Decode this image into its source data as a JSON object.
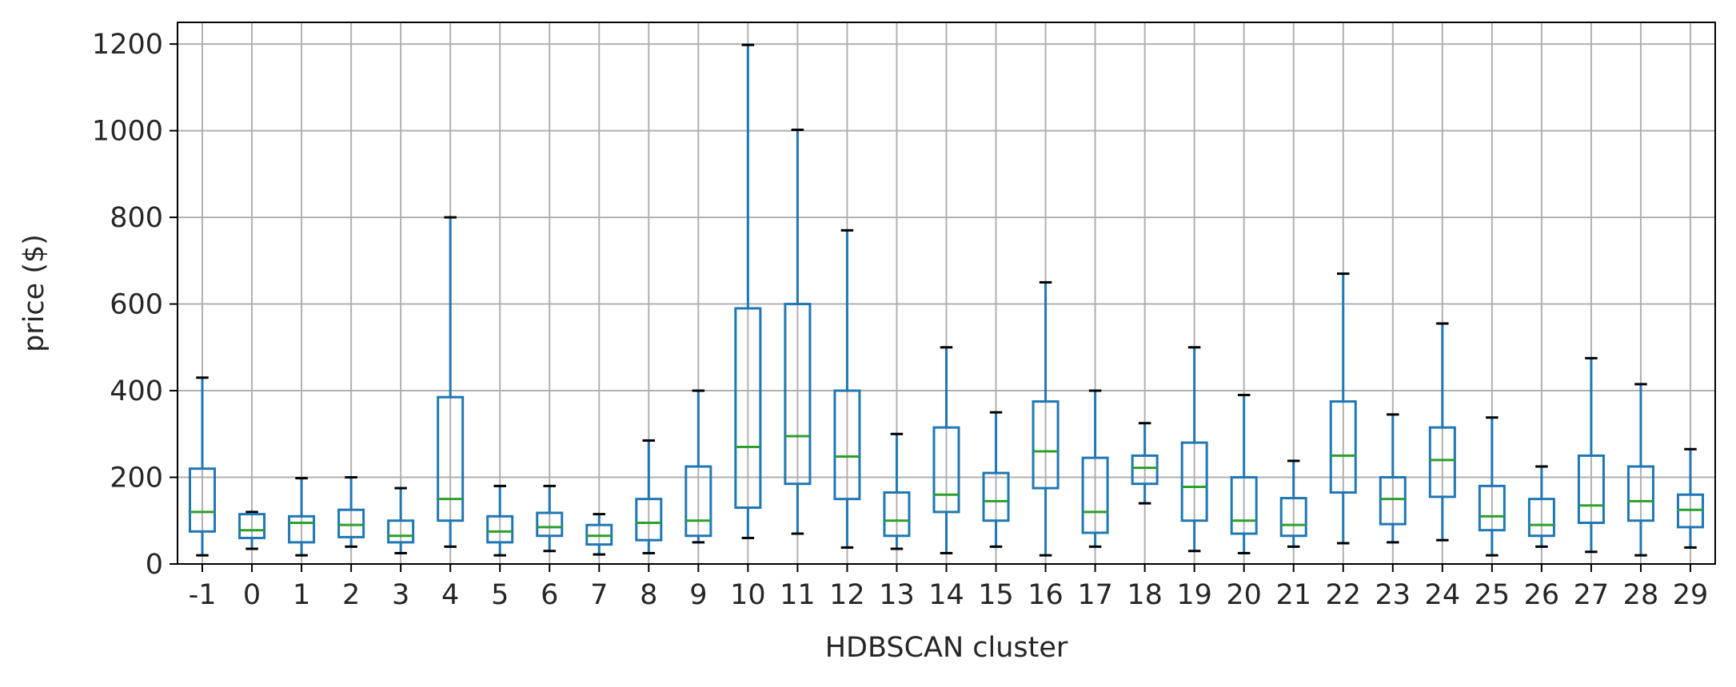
{
  "chart_data": {
    "type": "box",
    "xlabel": "HDBSCAN cluster",
    "ylabel": "price ($)",
    "ylim": [
      0,
      1250
    ],
    "yticks": [
      0,
      200,
      400,
      600,
      800,
      1000,
      1200
    ],
    "grid": true,
    "colors": {
      "box": "#1f77b4",
      "median": "#2ca02c",
      "whisker_cap": "#000000",
      "grid": "#b0b0b0"
    },
    "categories": [
      "-1",
      "0",
      "1",
      "2",
      "3",
      "4",
      "5",
      "6",
      "7",
      "8",
      "9",
      "10",
      "11",
      "12",
      "13",
      "14",
      "15",
      "16",
      "17",
      "18",
      "19",
      "20",
      "21",
      "22",
      "23",
      "24",
      "25",
      "26",
      "27",
      "28",
      "29"
    ],
    "boxes": [
      {
        "min": 20,
        "q1": 75,
        "median": 120,
        "q3": 220,
        "max": 430
      },
      {
        "min": 35,
        "q1": 60,
        "median": 78,
        "q3": 115,
        "max": 120
      },
      {
        "min": 20,
        "q1": 50,
        "median": 95,
        "q3": 110,
        "max": 198
      },
      {
        "min": 40,
        "q1": 62,
        "median": 90,
        "q3": 125,
        "max": 200
      },
      {
        "min": 25,
        "q1": 50,
        "median": 65,
        "q3": 100,
        "max": 175
      },
      {
        "min": 40,
        "q1": 100,
        "median": 150,
        "q3": 385,
        "max": 800
      },
      {
        "min": 20,
        "q1": 50,
        "median": 75,
        "q3": 110,
        "max": 180
      },
      {
        "min": 30,
        "q1": 65,
        "median": 85,
        "q3": 118,
        "max": 180
      },
      {
        "min": 22,
        "q1": 45,
        "median": 65,
        "q3": 90,
        "max": 115
      },
      {
        "min": 25,
        "q1": 55,
        "median": 95,
        "q3": 150,
        "max": 285
      },
      {
        "min": 50,
        "q1": 65,
        "median": 100,
        "q3": 225,
        "max": 400
      },
      {
        "min": 60,
        "q1": 130,
        "median": 270,
        "q3": 590,
        "max": 1198
      },
      {
        "min": 70,
        "q1": 185,
        "median": 295,
        "q3": 600,
        "max": 1002
      },
      {
        "min": 38,
        "q1": 150,
        "median": 248,
        "q3": 400,
        "max": 770
      },
      {
        "min": 35,
        "q1": 65,
        "median": 100,
        "q3": 165,
        "max": 300
      },
      {
        "min": 25,
        "q1": 120,
        "median": 160,
        "q3": 315,
        "max": 500
      },
      {
        "min": 40,
        "q1": 100,
        "median": 145,
        "q3": 210,
        "max": 350
      },
      {
        "min": 20,
        "q1": 175,
        "median": 260,
        "q3": 375,
        "max": 650
      },
      {
        "min": 40,
        "q1": 72,
        "median": 120,
        "q3": 245,
        "max": 400
      },
      {
        "min": 140,
        "q1": 185,
        "median": 222,
        "q3": 250,
        "max": 325
      },
      {
        "min": 30,
        "q1": 100,
        "median": 178,
        "q3": 280,
        "max": 500
      },
      {
        "min": 25,
        "q1": 70,
        "median": 100,
        "q3": 200,
        "max": 390
      },
      {
        "min": 40,
        "q1": 65,
        "median": 90,
        "q3": 152,
        "max": 238
      },
      {
        "min": 48,
        "q1": 165,
        "median": 250,
        "q3": 375,
        "max": 670
      },
      {
        "min": 50,
        "q1": 92,
        "median": 150,
        "q3": 200,
        "max": 345
      },
      {
        "min": 55,
        "q1": 155,
        "median": 240,
        "q3": 315,
        "max": 555
      },
      {
        "min": 20,
        "q1": 78,
        "median": 110,
        "q3": 180,
        "max": 338
      },
      {
        "min": 40,
        "q1": 65,
        "median": 90,
        "q3": 150,
        "max": 225
      },
      {
        "min": 28,
        "q1": 95,
        "median": 135,
        "q3": 250,
        "max": 475
      },
      {
        "min": 20,
        "q1": 100,
        "median": 145,
        "q3": 225,
        "max": 415
      },
      {
        "min": 38,
        "q1": 85,
        "median": 125,
        "q3": 160,
        "max": 265
      }
    ]
  }
}
